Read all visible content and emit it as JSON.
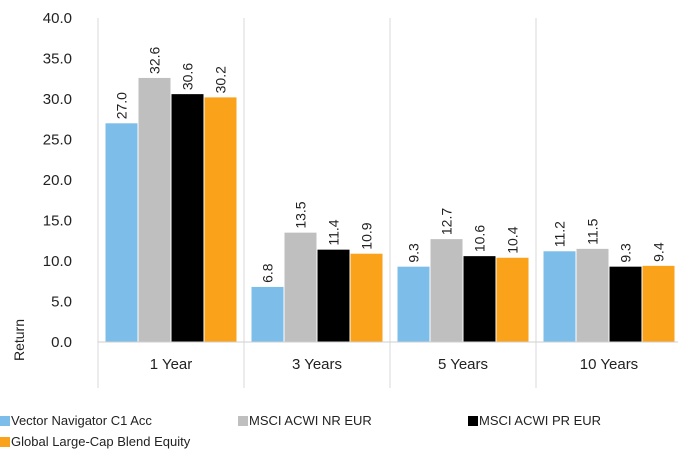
{
  "chart_data": {
    "type": "bar",
    "title": "",
    "xlabel": "",
    "ylabel": "Return",
    "ylim": [
      0,
      40
    ],
    "ytick_step": 5,
    "ytick_labels": [
      "0.0",
      "5.0",
      "10.0",
      "15.0",
      "20.0",
      "25.0",
      "30.0",
      "35.0",
      "40.0"
    ],
    "grid": "vertical",
    "legend_position": "bottom",
    "categories": [
      "1 Year",
      "3 Years",
      "5 Years",
      "10 Years"
    ],
    "series": [
      {
        "name": "Vector Navigator C1 Acc",
        "color": "#7dbde9",
        "values": [
          27.0,
          6.8,
          9.3,
          11.2
        ],
        "labels": [
          "27.0",
          "6.8",
          "9.3",
          "11.2"
        ]
      },
      {
        "name": "MSCI ACWI NR EUR",
        "color": "#bfbfbf",
        "values": [
          32.6,
          13.5,
          12.7,
          11.5
        ],
        "labels": [
          "32.6",
          "13.5",
          "12.7",
          "11.5"
        ]
      },
      {
        "name": "MSCI ACWI PR EUR",
        "color": "#000000",
        "values": [
          30.6,
          11.4,
          10.6,
          9.3
        ],
        "labels": [
          "30.6",
          "11.4",
          "10.6",
          "9.3"
        ]
      },
      {
        "name": "Global Large-Cap Blend Equity",
        "color": "#f9a21a",
        "values": [
          30.2,
          10.9,
          10.4,
          9.4
        ],
        "labels": [
          "30.2",
          "10.9",
          "10.4",
          "9.4"
        ]
      }
    ]
  }
}
